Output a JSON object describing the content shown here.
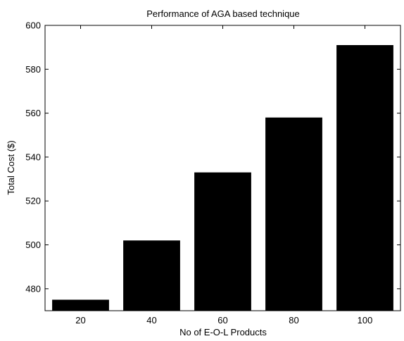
{
  "chart_data": {
    "type": "bar",
    "title": "Performance of AGA based technique",
    "xlabel": "No of E-O-L Products",
    "ylabel": "Total Cost ($)",
    "categories": [
      "20",
      "40",
      "60",
      "80",
      "100"
    ],
    "values": [
      475,
      502,
      533,
      558,
      591
    ],
    "ylim": [
      470,
      600
    ],
    "yticks": [
      480,
      500,
      520,
      540,
      560,
      580,
      600
    ],
    "grid": false,
    "bar_color": "#000000"
  }
}
